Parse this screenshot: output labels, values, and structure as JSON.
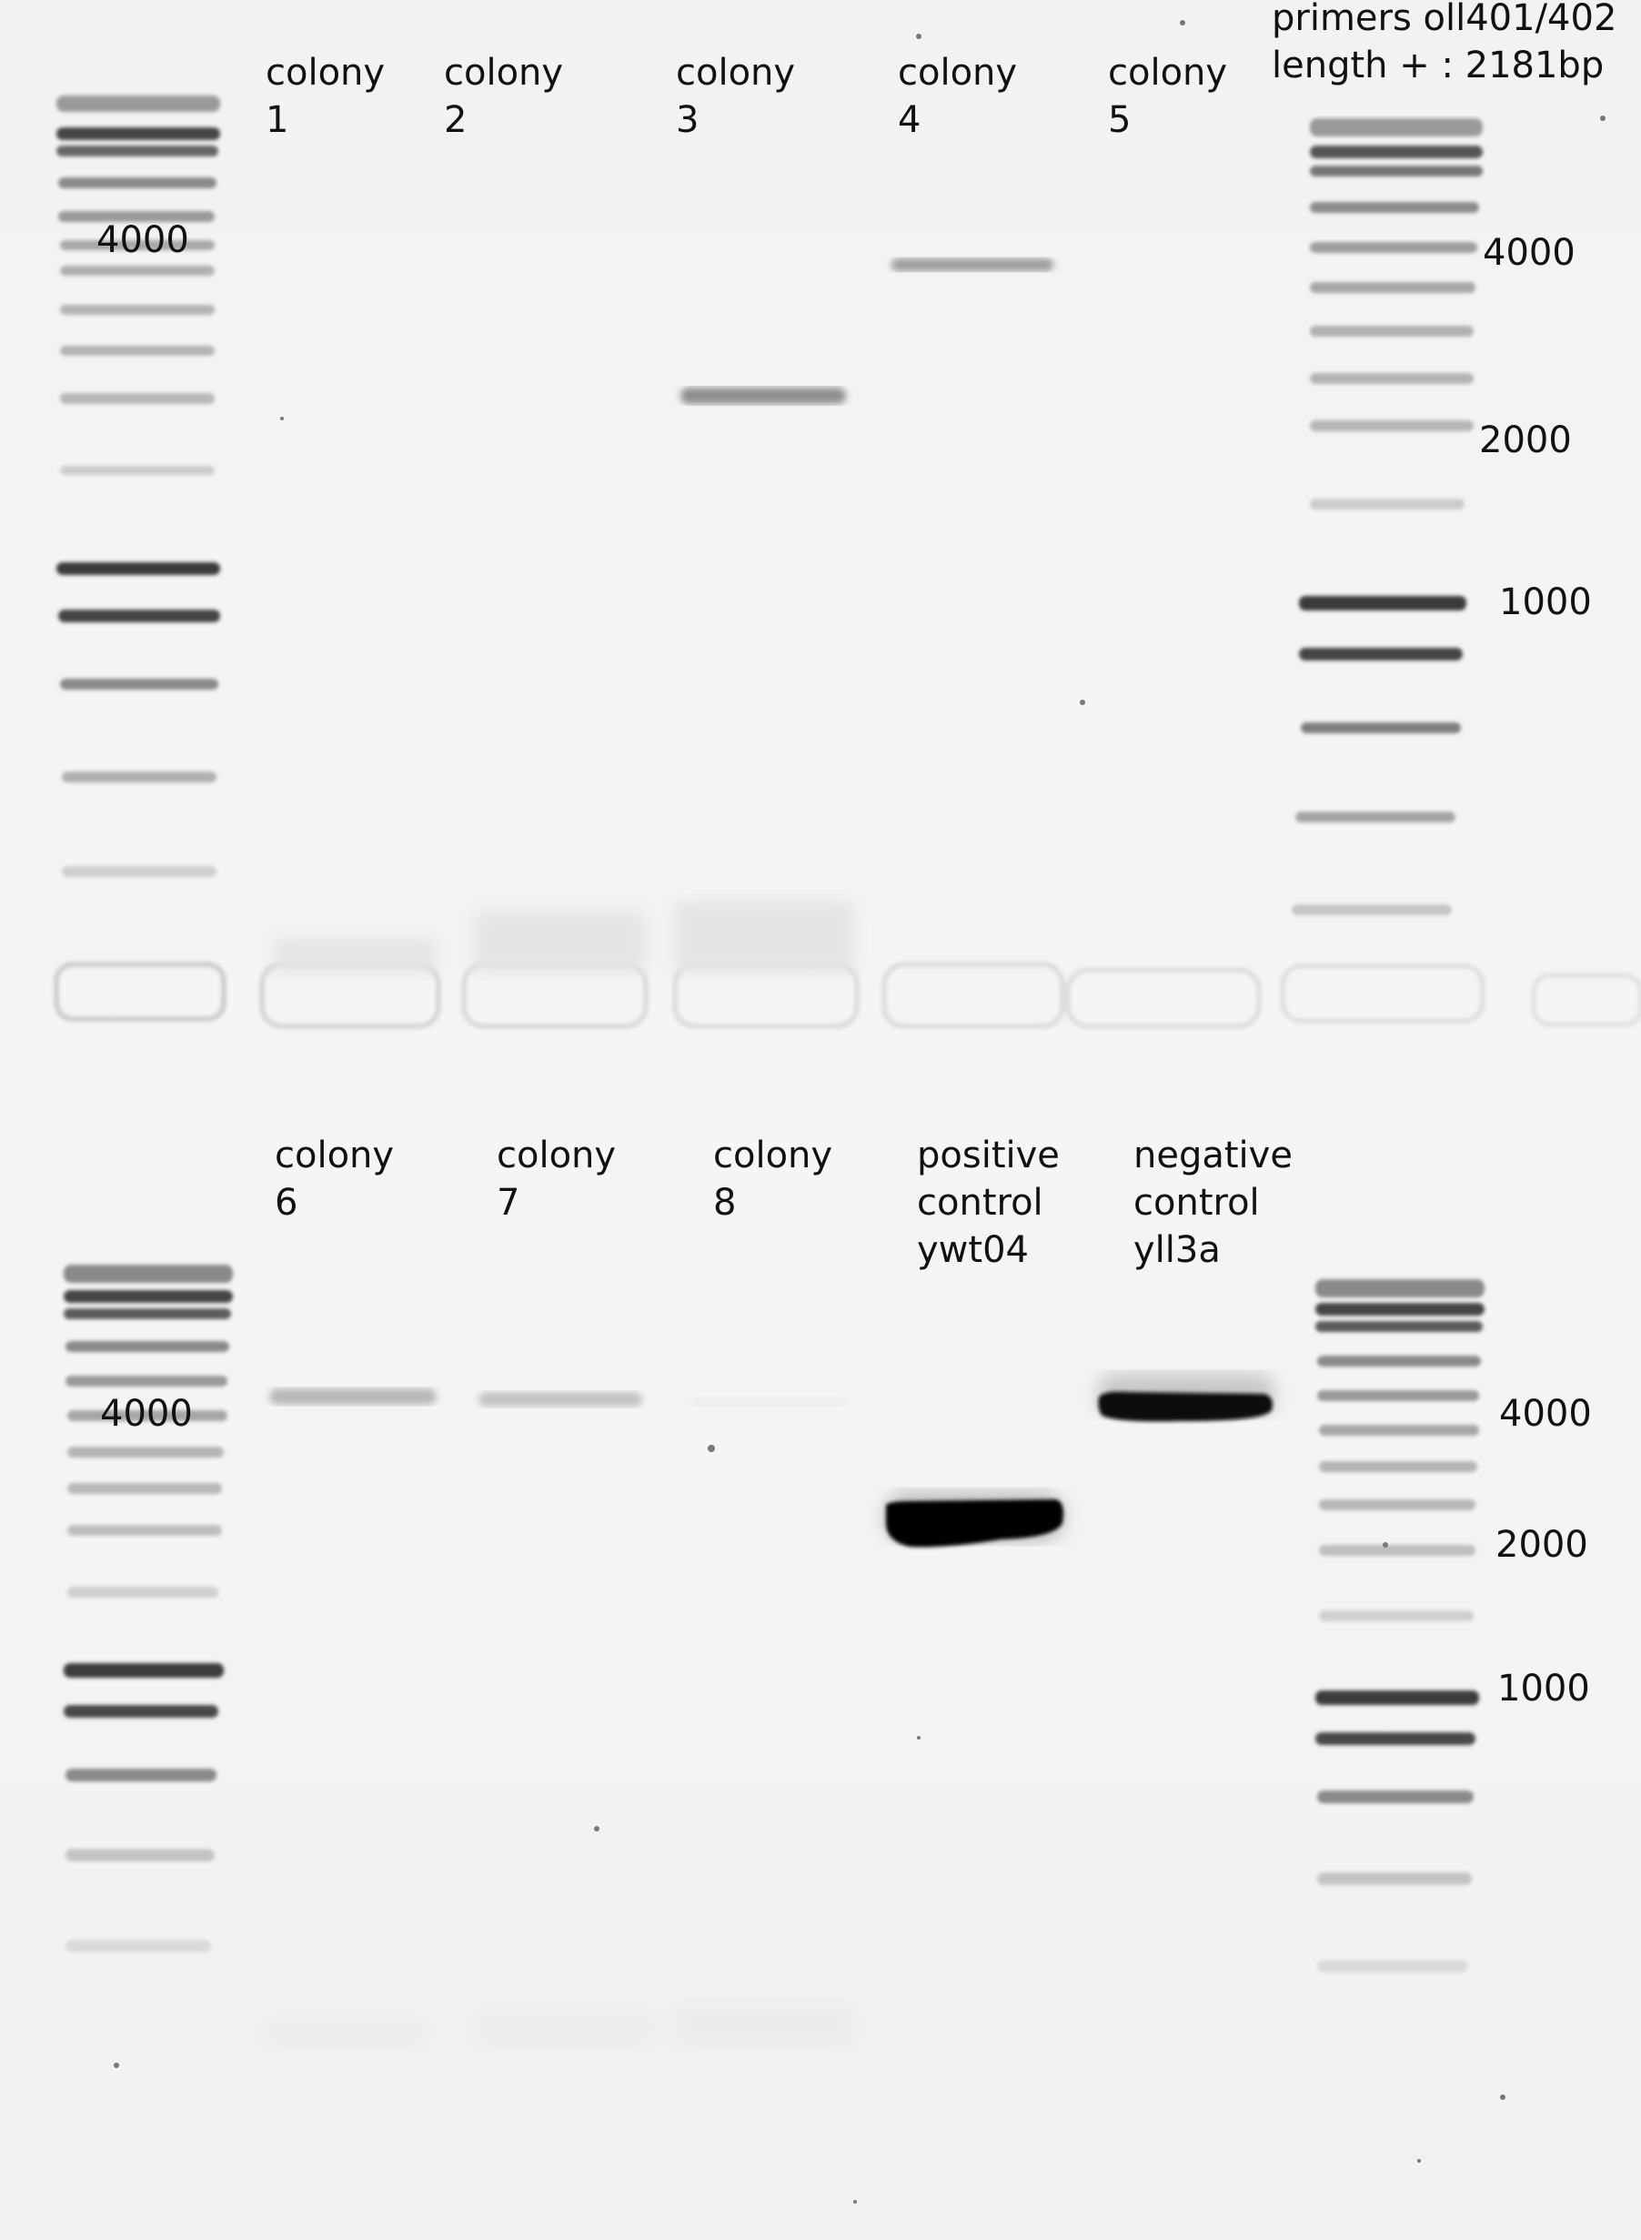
{
  "primers": {
    "line1": "primers oll401/402",
    "line2": "length + : 2181bp"
  },
  "top_lanes": [
    {
      "line1": "colony",
      "line2": "1"
    },
    {
      "line1": "colony",
      "line2": "2"
    },
    {
      "line1": "colony",
      "line2": "3"
    },
    {
      "line1": "colony",
      "line2": "4"
    },
    {
      "line1": "colony",
      "line2": "5"
    }
  ],
  "bottom_lanes": [
    {
      "line1": "colony",
      "line2": "6"
    },
    {
      "line1": "colony",
      "line2": "7"
    },
    {
      "line1": "colony",
      "line2": "8"
    },
    {
      "line1": "positive",
      "line2": "control",
      "line3": "ywt04"
    },
    {
      "line1": "negative",
      "line2": "control",
      "line3": "yll3a"
    }
  ],
  "markers": {
    "top_left": "4000",
    "top_right": [
      "4000",
      "2000",
      "1000"
    ],
    "bottom_left": "4000",
    "bottom_right": [
      "4000",
      "2000",
      "1000"
    ]
  }
}
